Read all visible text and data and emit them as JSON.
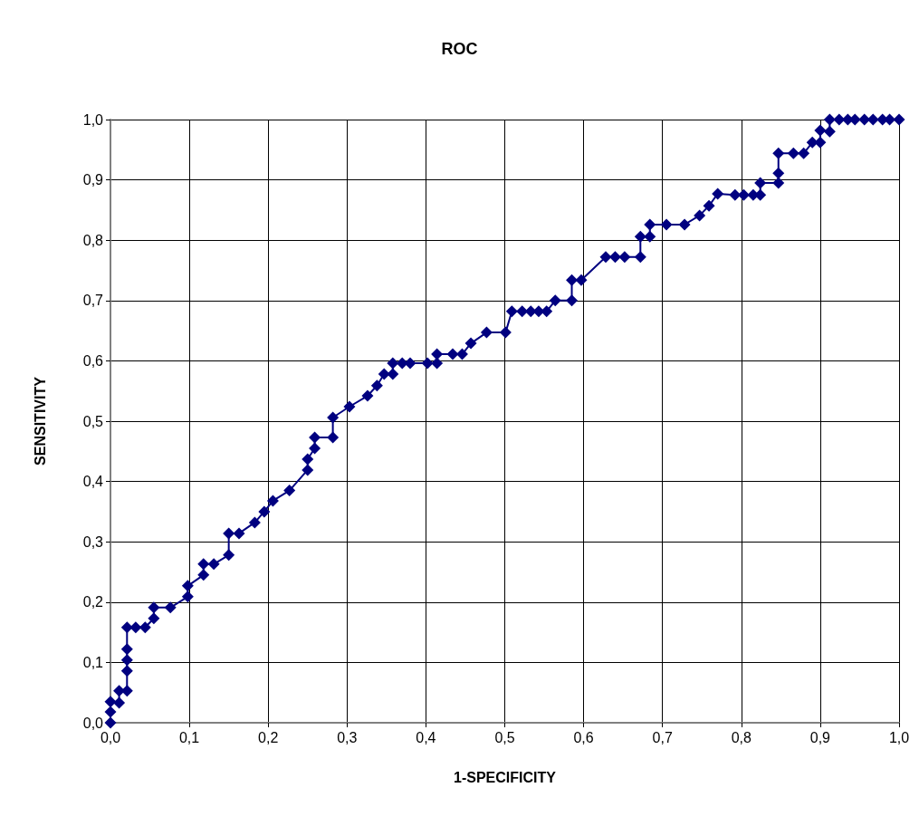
{
  "chart_data": {
    "type": "line",
    "title": "ROC",
    "xlabel": "1-SPECIFICITY",
    "ylabel": "SENSITIVITY",
    "marker": "diamond",
    "line_style": "solid",
    "grid": true,
    "xlim": [
      0,
      1
    ],
    "ylim": [
      0,
      1
    ],
    "xticks": [
      {
        "value": 0,
        "label": "0,0"
      },
      {
        "value": 0.1,
        "label": "0,1"
      },
      {
        "value": 0.2,
        "label": "0,2"
      },
      {
        "value": 0.3,
        "label": "0,3"
      },
      {
        "value": 0.4,
        "label": "0,4"
      },
      {
        "value": 0.5,
        "label": "0,5"
      },
      {
        "value": 0.6,
        "label": "0,6"
      },
      {
        "value": 0.7,
        "label": "0,7"
      },
      {
        "value": 0.8,
        "label": "0,8"
      },
      {
        "value": 0.9,
        "label": "0,9"
      },
      {
        "value": 1,
        "label": "1,0"
      }
    ],
    "yticks": [
      {
        "value": 0,
        "label": "0,0"
      },
      {
        "value": 0.1,
        "label": "0,1"
      },
      {
        "value": 0.2,
        "label": "0,2"
      },
      {
        "value": 0.3,
        "label": "0,3"
      },
      {
        "value": 0.4,
        "label": "0,4"
      },
      {
        "value": 0.5,
        "label": "0,5"
      },
      {
        "value": 0.6,
        "label": "0,6"
      },
      {
        "value": 0.7,
        "label": "0,7"
      },
      {
        "value": 0.8,
        "label": "0,8"
      },
      {
        "value": 0.9,
        "label": "0,9"
      },
      {
        "value": 1,
        "label": "1,0"
      }
    ],
    "series": [
      {
        "color": "#000080",
        "x": [
          0,
          0,
          0,
          0.011,
          0.011,
          0.021,
          0.021,
          0.021,
          0.021,
          0.021,
          0.032,
          0.044,
          0.055,
          0.055,
          0.076,
          0.098,
          0.098,
          0.118,
          0.118,
          0.131,
          0.15,
          0.15,
          0.163,
          0.183,
          0.195,
          0.206,
          0.227,
          0.25,
          0.25,
          0.259,
          0.259,
          0.282,
          0.282,
          0.303,
          0.326,
          0.338,
          0.347,
          0.358,
          0.358,
          0.37,
          0.38,
          0.402,
          0.414,
          0.414,
          0.434,
          0.446,
          0.457,
          0.477,
          0.501,
          0.509,
          0.522,
          0.533,
          0.543,
          0.553,
          0.564,
          0.585,
          0.585,
          0.597,
          0.628,
          0.64,
          0.652,
          0.672,
          0.672,
          0.684,
          0.684,
          0.705,
          0.728,
          0.747,
          0.759,
          0.77,
          0.792,
          0.803,
          0.815,
          0.824,
          0.824,
          0.847,
          0.847,
          0.847,
          0.866,
          0.879,
          0.89,
          0.9,
          0.9,
          0.912,
          0.912,
          0.924,
          0.935,
          0.944,
          0.956,
          0.967,
          0.979,
          0.988,
          1
        ],
        "values": [
          0,
          0.018,
          0.035,
          0.033,
          0.053,
          0.053,
          0.086,
          0.104,
          0.122,
          0.158,
          0.158,
          0.158,
          0.173,
          0.191,
          0.191,
          0.209,
          0.227,
          0.245,
          0.263,
          0.263,
          0.278,
          0.314,
          0.314,
          0.332,
          0.35,
          0.368,
          0.385,
          0.419,
          0.437,
          0.455,
          0.473,
          0.473,
          0.506,
          0.524,
          0.542,
          0.559,
          0.578,
          0.578,
          0.596,
          0.596,
          0.596,
          0.596,
          0.596,
          0.611,
          0.611,
          0.611,
          0.629,
          0.647,
          0.647,
          0.682,
          0.682,
          0.682,
          0.682,
          0.682,
          0.7,
          0.7,
          0.734,
          0.734,
          0.772,
          0.772,
          0.772,
          0.772,
          0.806,
          0.806,
          0.826,
          0.826,
          0.826,
          0.841,
          0.857,
          0.877,
          0.875,
          0.875,
          0.875,
          0.875,
          0.895,
          0.895,
          0.911,
          0.944,
          0.944,
          0.944,
          0.962,
          0.962,
          0.982,
          0.98,
          1,
          1,
          1,
          1,
          1,
          1,
          1,
          1,
          1
        ]
      }
    ]
  }
}
